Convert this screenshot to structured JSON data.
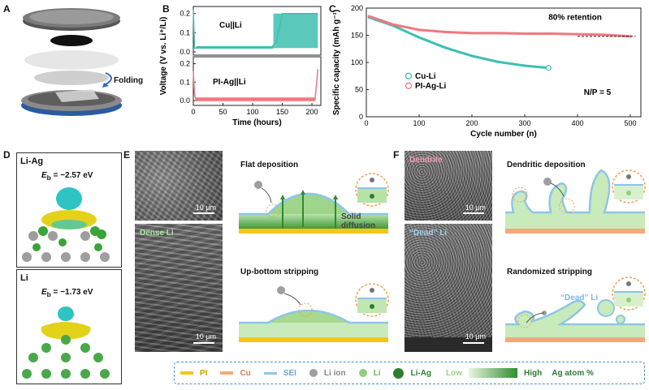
{
  "panels": {
    "A": "A",
    "B": "B",
    "C": "C",
    "D": "D",
    "E": "E",
    "F": "F"
  },
  "panel_a": {
    "folding_label": "Folding"
  },
  "panel_b": {
    "top_label": "Cu||Li",
    "bottom_label": "PI-Ag||Li",
    "ylabel": "Voltage (V vs. Li⁺/Li)",
    "xlabel": "Time (hours)",
    "top_yticks": [
      "0.2",
      "0.1",
      "0.0"
    ],
    "bottom_yticks": [
      "0.2",
      "0.1",
      "0.0"
    ],
    "xticks": [
      "0",
      "50",
      "100",
      "150",
      "200"
    ]
  },
  "chart_data": [
    {
      "type": "line",
      "title": "",
      "xlabel": "Time (hours)",
      "ylabel": "Voltage (V vs. Li⁺/Li)",
      "series": [
        {
          "name": "Cu||Li",
          "x": [
            0,
            2,
            10,
            50,
            100,
            130,
            140,
            150,
            160,
            170,
            180,
            200,
            210
          ],
          "values": [
            0.22,
            0.02,
            0.02,
            0.02,
            0.02,
            0.02,
            0.05,
            0.2,
            0.2,
            0.2,
            0.2,
            0.2,
            0.2
          ]
        },
        {
          "name": "PI-Ag||Li",
          "x": [
            0,
            2,
            5,
            10,
            50,
            100,
            150,
            200,
            205,
            210
          ],
          "values": [
            0.16,
            0.03,
            0.0,
            0.0,
            0.0,
            0.0,
            0.0,
            0.0,
            0.0,
            0.17
          ]
        }
      ],
      "xlim": [
        0,
        215
      ]
    },
    {
      "type": "scatter",
      "title": "",
      "xlabel": "Cycle number (n)",
      "ylabel": "Specific capacity (mAh g⁻¹)",
      "xlim": [
        0,
        520
      ],
      "ylim": [
        0,
        200
      ],
      "series": [
        {
          "name": "Cu-Li",
          "x": [
            5,
            50,
            100,
            150,
            200,
            250,
            300,
            345
          ],
          "values": [
            183,
            168,
            146,
            127,
            112,
            101,
            94,
            90
          ]
        },
        {
          "name": "PI-Ag-Li",
          "x": [
            5,
            50,
            100,
            150,
            200,
            250,
            300,
            350,
            400,
            450,
            500
          ],
          "values": [
            185,
            170,
            160,
            156,
            154,
            154,
            153,
            153,
            152,
            151,
            148
          ]
        }
      ]
    }
  ],
  "panel_c": {
    "ylabel": "Specific capacity (mAh g⁻¹)",
    "xlabel": "Cycle number (n)",
    "yticks": [
      "200",
      "150",
      "100",
      "50",
      "0"
    ],
    "xticks": [
      "0",
      "100",
      "200",
      "300",
      "400",
      "500"
    ],
    "retention": "80% retention",
    "np": "N/P = 5",
    "legend": [
      "Cu-Li",
      "PI-Ag-Li"
    ],
    "colors": {
      "culi": "#3dbfb0",
      "piag": "#f07880"
    }
  },
  "panel_d": {
    "top_title": "Li-Ag",
    "top_eb_label": "E",
    "top_eb_sub": "b",
    "top_eb_val": " = −2.57 eV",
    "bottom_title": "Li",
    "bottom_eb_label": "E",
    "bottom_eb_sub": "b",
    "bottom_eb_val": " = −1.73 eV"
  },
  "panel_e": {
    "sem_top_scale": "10 μm",
    "sem_bottom_label": "Dense Li",
    "sem_bottom_scale": "10 μm",
    "top_title": "Flat deposition",
    "solid_diffusion": "Solid\ndiffusion",
    "bottom_title": "Up-bottom stripping"
  },
  "panel_f": {
    "sem_top_label": "Dendrite",
    "sem_top_scale": "10 μm",
    "sem_bottom_label": "“Dead” Li",
    "sem_bottom_scale": "10 μm",
    "top_title": "Dendritic deposition",
    "bottom_title": "Randomized stripping",
    "dead_li": "“Dead” Li"
  },
  "legend": {
    "pi": "PI",
    "cu": "Cu",
    "sei": "SEI",
    "liion": "Li ion",
    "li": "Li",
    "liag": "Li-Ag",
    "low": "Low",
    "high": "High",
    "agpct": "Ag atom %",
    "colors": {
      "pi": "#f5c518",
      "cu": "#f4a97a",
      "sei": "#8ec5e8",
      "liion": "#9e9e9e",
      "li": "#8fd07a",
      "liag": "#2e7d32"
    }
  }
}
